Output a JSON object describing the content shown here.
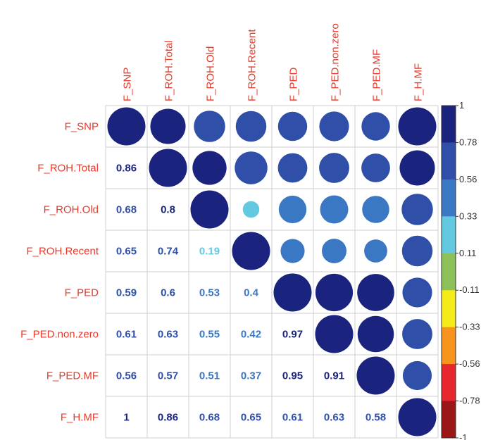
{
  "chart_data": {
    "type": "heatmap",
    "variables": [
      "F_SNP",
      "F_ROH.Total",
      "F_ROH.Old",
      "F_ROH.Recent",
      "F_PED",
      "F_PED.non.zero",
      "F_PED.MF",
      "F_H.MF"
    ],
    "matrix": [
      [
        1,
        0.86,
        0.68,
        0.65,
        0.59,
        0.61,
        0.56,
        1
      ],
      [
        0.86,
        1,
        0.8,
        0.74,
        0.6,
        0.63,
        0.57,
        0.86
      ],
      [
        0.68,
        0.8,
        1,
        0.19,
        0.53,
        0.55,
        0.51,
        0.68
      ],
      [
        0.65,
        0.74,
        0.19,
        1,
        0.4,
        0.42,
        0.37,
        0.65
      ],
      [
        0.59,
        0.6,
        0.53,
        0.4,
        1,
        0.97,
        0.95,
        0.61
      ],
      [
        0.61,
        0.63,
        0.55,
        0.42,
        0.97,
        1,
        0.91,
        0.63
      ],
      [
        0.56,
        0.57,
        0.51,
        0.37,
        0.95,
        0.91,
        1,
        0.58
      ],
      [
        1,
        0.86,
        0.68,
        0.65,
        0.61,
        0.63,
        0.58,
        1
      ]
    ],
    "lower_labels": [
      [],
      [
        "0.86"
      ],
      [
        "0.68",
        "0.8"
      ],
      [
        "0.65",
        "0.74",
        "0.19"
      ],
      [
        "0.59",
        "0.6",
        "0.53",
        "0.4"
      ],
      [
        "0.61",
        "0.63",
        "0.55",
        "0.42",
        "0.97"
      ],
      [
        "0.56",
        "0.57",
        "0.51",
        "0.37",
        "0.95",
        "0.91"
      ],
      [
        "1",
        "0.86",
        "0.68",
        "0.65",
        "0.61",
        "0.63",
        "0.58"
      ]
    ],
    "upper_display": "circle",
    "lower_display": "number",
    "colorbar": {
      "range": [
        -1,
        1
      ],
      "tick_labels": [
        "1",
        "0.78",
        "0.56",
        "0.33",
        "0.11",
        "-0.11",
        "-0.33",
        "-0.56",
        "-0.78",
        "-1"
      ],
      "colors": [
        "#1a237e",
        "#2f4fa8",
        "#3a78c4",
        "#62c9e0",
        "#8cc15a",
        "#f4ec1a",
        "#f7941d",
        "#e8262d",
        "#9b1616"
      ]
    },
    "label_color": "#e8392a"
  }
}
